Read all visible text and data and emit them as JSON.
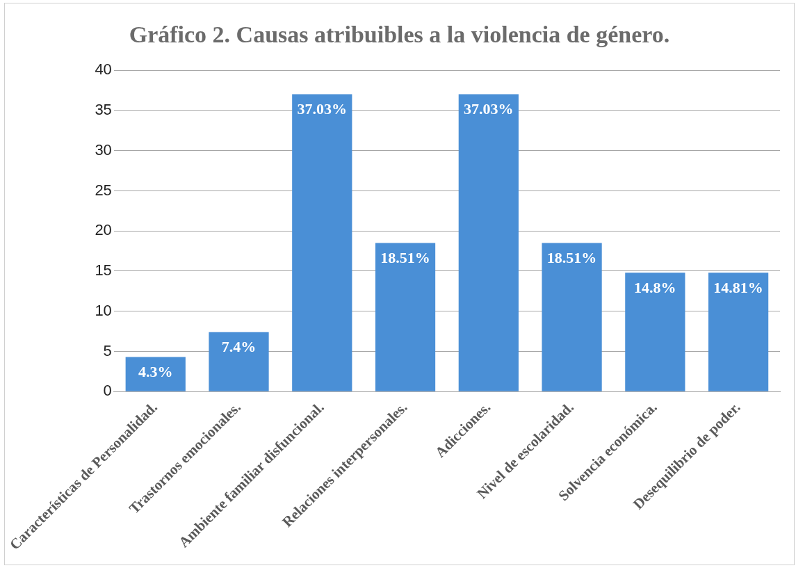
{
  "chart_data": {
    "type": "bar",
    "title": "Gráfico 2. Causas atribuibles a la violencia de género.",
    "categories": [
      "Características de Personalidad.",
      "Trastornos emocionales.",
      "Ambiente familiar disfuncional.",
      "Relaciones interpersonales.",
      "Adicciones.",
      "Nivel de escolaridad.",
      "Solvencia económica.",
      "Desequilibrio de poder."
    ],
    "values": [
      4.3,
      7.4,
      37.03,
      18.51,
      37.03,
      18.51,
      14.8,
      14.81
    ],
    "value_labels": [
      "4.3%",
      "7.4%",
      "37.03%",
      "18.51%",
      "37.03%",
      "18.51%",
      "14.8%",
      "14.81%"
    ],
    "color": "#4a8fd6",
    "ylim": [
      0,
      40
    ],
    "yticks": [
      0,
      5,
      10,
      15,
      20,
      25,
      30,
      35,
      40
    ],
    "grid": "y",
    "legend": false
  }
}
